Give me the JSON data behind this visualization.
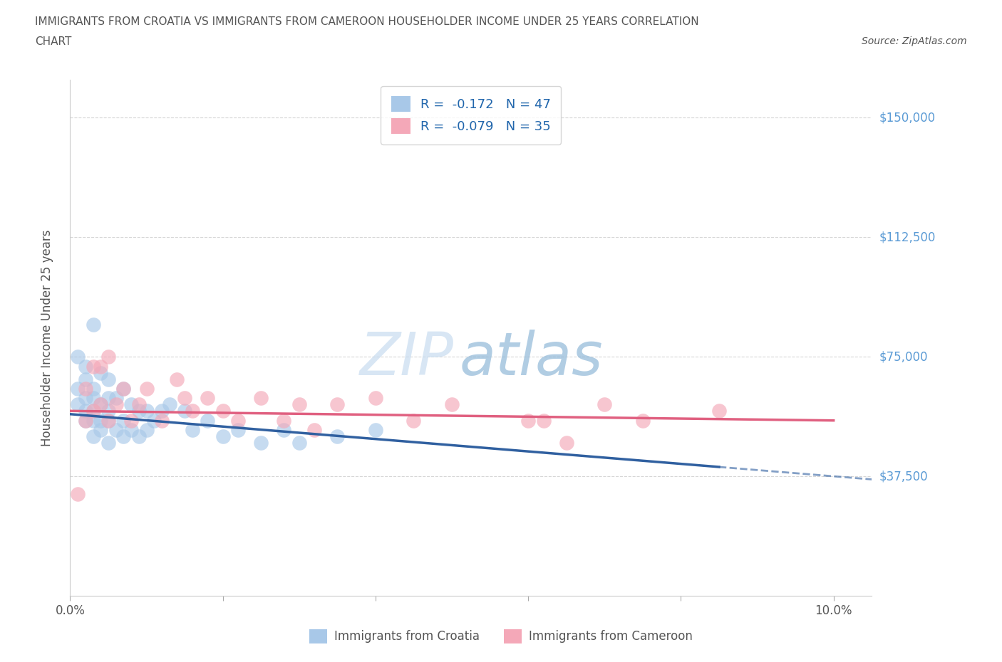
{
  "title_line1": "IMMIGRANTS FROM CROATIA VS IMMIGRANTS FROM CAMEROON HOUSEHOLDER INCOME UNDER 25 YEARS CORRELATION",
  "title_line2": "CHART",
  "source": "Source: ZipAtlas.com",
  "ylabel": "Householder Income Under 25 years",
  "croatia_color": "#A8C8E8",
  "cameroon_color": "#F4A8B8",
  "croatia_line_color": "#3060A0",
  "cameroon_line_color": "#E06080",
  "croatia_R": -0.172,
  "croatia_N": 47,
  "cameroon_R": -0.079,
  "cameroon_N": 35,
  "yticks": [
    0,
    37500,
    75000,
    112500,
    150000
  ],
  "xticks": [
    0.0,
    0.02,
    0.04,
    0.06,
    0.08,
    0.1
  ],
  "xlim": [
    0.0,
    0.105
  ],
  "ylim": [
    0,
    162000
  ],
  "croatia_x": [
    0.001,
    0.001,
    0.001,
    0.002,
    0.002,
    0.002,
    0.002,
    0.002,
    0.003,
    0.003,
    0.003,
    0.003,
    0.003,
    0.003,
    0.004,
    0.004,
    0.004,
    0.004,
    0.005,
    0.005,
    0.005,
    0.005,
    0.005,
    0.006,
    0.006,
    0.007,
    0.007,
    0.007,
    0.008,
    0.008,
    0.009,
    0.009,
    0.01,
    0.01,
    0.011,
    0.012,
    0.013,
    0.015,
    0.016,
    0.018,
    0.02,
    0.022,
    0.025,
    0.028,
    0.03,
    0.035,
    0.04
  ],
  "croatia_y": [
    60000,
    65000,
    75000,
    55000,
    58000,
    62000,
    68000,
    72000,
    50000,
    55000,
    58000,
    62000,
    65000,
    85000,
    52000,
    55000,
    60000,
    70000,
    48000,
    55000,
    58000,
    62000,
    68000,
    52000,
    62000,
    50000,
    55000,
    65000,
    52000,
    60000,
    50000,
    58000,
    52000,
    58000,
    55000,
    58000,
    60000,
    58000,
    52000,
    55000,
    50000,
    52000,
    48000,
    52000,
    48000,
    50000,
    52000
  ],
  "cameroon_x": [
    0.001,
    0.002,
    0.002,
    0.003,
    0.003,
    0.004,
    0.004,
    0.005,
    0.005,
    0.006,
    0.007,
    0.008,
    0.009,
    0.01,
    0.012,
    0.014,
    0.015,
    0.016,
    0.018,
    0.02,
    0.022,
    0.025,
    0.028,
    0.03,
    0.032,
    0.035,
    0.04,
    0.045,
    0.05,
    0.06,
    0.062,
    0.065,
    0.07,
    0.075,
    0.085
  ],
  "cameroon_y": [
    32000,
    55000,
    65000,
    58000,
    72000,
    60000,
    72000,
    55000,
    75000,
    60000,
    65000,
    55000,
    60000,
    65000,
    55000,
    68000,
    62000,
    58000,
    62000,
    58000,
    55000,
    62000,
    55000,
    60000,
    52000,
    60000,
    62000,
    55000,
    60000,
    55000,
    55000,
    48000,
    60000,
    55000,
    58000
  ],
  "background_color": "#FFFFFF",
  "grid_color": "#CCCCCC",
  "title_color": "#555555",
  "right_tick_color": "#5B9BD5"
}
